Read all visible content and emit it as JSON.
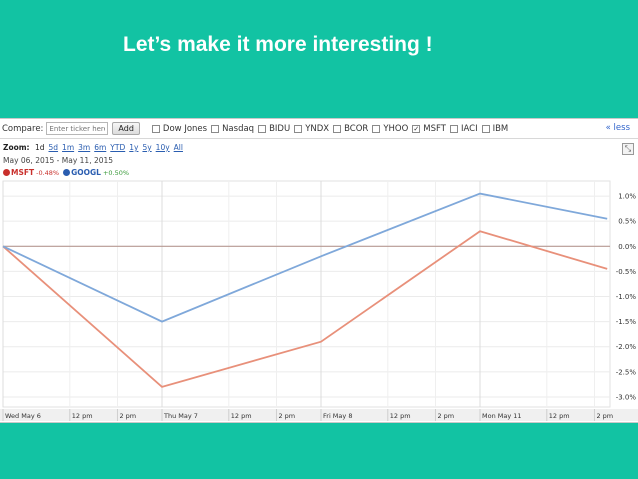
{
  "slide": {
    "title": "Let’s make it more interesting !",
    "background": "#12c3a3"
  },
  "compare_bar": {
    "label": "Compare:",
    "input_placeholder": "Enter ticker here",
    "add_label": "Add",
    "items": [
      {
        "label": "Dow Jones",
        "checked": false
      },
      {
        "label": "Nasdaq",
        "checked": false
      },
      {
        "label": "BIDU",
        "checked": false
      },
      {
        "label": "YNDX",
        "checked": false
      },
      {
        "label": "BCOR",
        "checked": false
      },
      {
        "label": "YHOO",
        "checked": false
      },
      {
        "label": "MSFT",
        "checked": true
      },
      {
        "label": "IACI",
        "checked": false
      },
      {
        "label": "IBM",
        "checked": false
      }
    ],
    "less_label": "« less",
    "checkmark": "✓"
  },
  "zoom": {
    "label": "Zoom:",
    "options": [
      "1d",
      "5d",
      "1m",
      "3m",
      "6m",
      "YTD",
      "1y",
      "5y",
      "10y",
      "All"
    ],
    "current": "1d"
  },
  "range_text": "May 06, 2015 - May 11, 2015",
  "legend": {
    "msft": {
      "name": "MSFT",
      "change": "-0.48%",
      "color": "#c9302c"
    },
    "googl": {
      "name": "GOOGL",
      "change": "+0.50%",
      "color": "#2a5db0"
    }
  },
  "expand_icon": "⤡",
  "chart_data": {
    "type": "line",
    "x": [
      "Wed May 6",
      "Thu May 7",
      "Fri May 8",
      "Mon May 11",
      "end"
    ],
    "x_index": [
      0,
      1,
      2,
      3,
      3.8
    ],
    "series": [
      {
        "name": "MSFT",
        "color": "#e8907a",
        "values": [
          0.0,
          -2.8,
          -1.9,
          0.3,
          -0.45
        ]
      },
      {
        "name": "GOOGL",
        "color": "#7fa8da",
        "values": [
          0.0,
          -1.5,
          -0.2,
          1.05,
          0.55
        ]
      }
    ],
    "ylim": [
      -3.2,
      1.3
    ],
    "yticks": [
      1.0,
      0.5,
      0.0,
      -0.5,
      -1.0,
      -1.5,
      -2.0,
      -2.5,
      -3.0
    ],
    "ytick_labels": [
      "1.0%",
      "0.5%",
      "0.0%",
      "-0.5%",
      "-1.0%",
      "-1.5%",
      "-2.0%",
      "-2.5%",
      "-3.0%"
    ],
    "baseline": 0.0,
    "xtick_labels": [
      {
        "label": "Wed May 6",
        "day_pos": 0.0
      },
      {
        "label": "12 pm",
        "day_pos": 0.42
      },
      {
        "label": "2 pm",
        "day_pos": 0.72
      },
      {
        "label": "Thu May 7",
        "day_pos": 1.0
      },
      {
        "label": "12 pm",
        "day_pos": 1.42
      },
      {
        "label": "2 pm",
        "day_pos": 1.72
      },
      {
        "label": "Fri May 8",
        "day_pos": 2.0
      },
      {
        "label": "12 pm",
        "day_pos": 2.42
      },
      {
        "label": "2 pm",
        "day_pos": 2.72
      },
      {
        "label": "Mon May 11",
        "day_pos": 3.0
      },
      {
        "label": "12 pm",
        "day_pos": 3.42
      },
      {
        "label": "2 pm",
        "day_pos": 3.72
      }
    ],
    "grid": true
  }
}
